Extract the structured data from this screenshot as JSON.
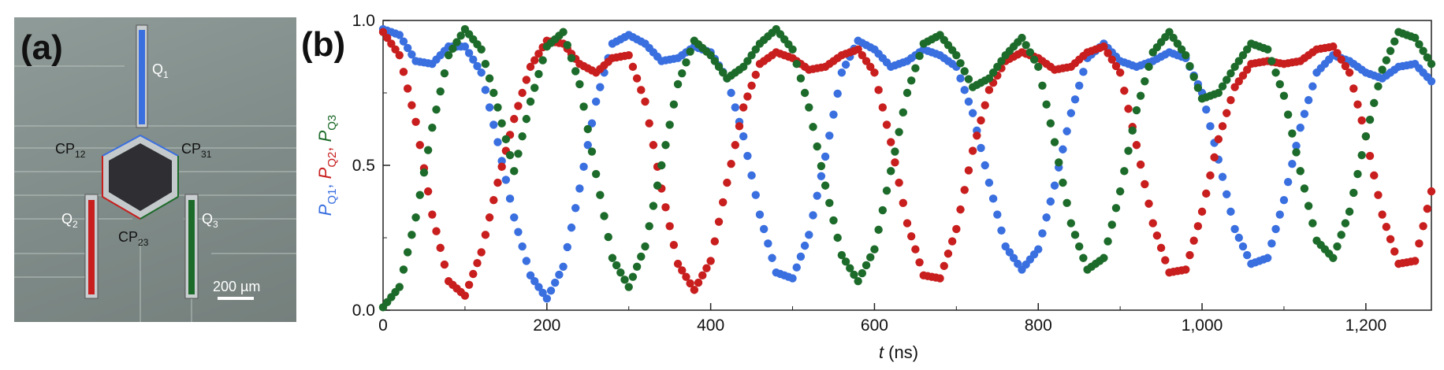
{
  "panel_a": {
    "label": "(a)",
    "labels": {
      "q1": "Q",
      "q1_sub": "1",
      "q2": "Q",
      "q2_sub": "2",
      "q3": "Q",
      "q3_sub": "3",
      "cp12": "CP",
      "cp12_sub": "12",
      "cp31": "CP",
      "cp31_sub": "31",
      "cp23": "CP",
      "cp23_sub": "23"
    },
    "scale_bar": "200 µm",
    "colors": {
      "q1": "#3a6fe0",
      "q2": "#c81e1e",
      "q3": "#1d6b2a",
      "body": "#2f2f33"
    }
  },
  "panel_b": {
    "label": "(b)",
    "xlabel_italic": "t",
    "xlabel_unit": " (ns)",
    "ylabel_parts": [
      {
        "p": "P",
        "sub": "Q1",
        "sep": ", ",
        "color": "#3a6fe0"
      },
      {
        "p": "P",
        "sub": "Q2",
        "sep": ", ",
        "color": "#c81e1e"
      },
      {
        "p": "P",
        "sub": "Q3",
        "sep": "",
        "color": "#1d6b2a"
      }
    ]
  },
  "chart_data": {
    "type": "scatter",
    "xlim": [
      0,
      1280
    ],
    "ylim": [
      0,
      1
    ],
    "x_ticks": [
      0,
      200,
      400,
      600,
      800,
      1000,
      1200
    ],
    "x_tick_labels": [
      "0",
      "200",
      "400",
      "600",
      "800",
      "1,000",
      "1,200"
    ],
    "y_ticks": [
      0,
      0.5,
      1
    ],
    "y_tick_labels": [
      "0.0",
      "0.5",
      "1.0"
    ],
    "grid": false,
    "series": [
      {
        "name": "PQ1",
        "color": "#3a6fe0",
        "points": [
          [
            0,
            0.97
          ],
          [
            20,
            0.95
          ],
          [
            40,
            0.86
          ],
          [
            60,
            0.85
          ],
          [
            80,
            0.91
          ],
          [
            100,
            0.91
          ],
          [
            120,
            0.82
          ],
          [
            140,
            0.58
          ],
          [
            160,
            0.32
          ],
          [
            180,
            0.12
          ],
          [
            200,
            0.04
          ],
          [
            220,
            0.15
          ],
          [
            240,
            0.42
          ],
          [
            260,
            0.72
          ],
          [
            280,
            0.92
          ],
          [
            300,
            0.95
          ],
          [
            320,
            0.92
          ],
          [
            340,
            0.86
          ],
          [
            360,
            0.87
          ],
          [
            380,
            0.91
          ],
          [
            400,
            0.89
          ],
          [
            420,
            0.8
          ],
          [
            440,
            0.6
          ],
          [
            460,
            0.33
          ],
          [
            480,
            0.13
          ],
          [
            500,
            0.11
          ],
          [
            520,
            0.26
          ],
          [
            540,
            0.53
          ],
          [
            560,
            0.82
          ],
          [
            580,
            0.93
          ],
          [
            600,
            0.9
          ],
          [
            620,
            0.84
          ],
          [
            640,
            0.86
          ],
          [
            660,
            0.9
          ],
          [
            680,
            0.88
          ],
          [
            700,
            0.84
          ],
          [
            720,
            0.68
          ],
          [
            740,
            0.44
          ],
          [
            760,
            0.22
          ],
          [
            780,
            0.14
          ],
          [
            800,
            0.21
          ],
          [
            820,
            0.43
          ],
          [
            840,
            0.68
          ],
          [
            860,
            0.87
          ],
          [
            880,
            0.92
          ],
          [
            900,
            0.86
          ],
          [
            920,
            0.84
          ],
          [
            940,
            0.86
          ],
          [
            960,
            0.89
          ],
          [
            980,
            0.87
          ],
          [
            1000,
            0.75
          ],
          [
            1020,
            0.52
          ],
          [
            1040,
            0.28
          ],
          [
            1060,
            0.16
          ],
          [
            1080,
            0.18
          ],
          [
            1100,
            0.38
          ],
          [
            1120,
            0.63
          ],
          [
            1140,
            0.82
          ],
          [
            1160,
            0.88
          ],
          [
            1180,
            0.86
          ],
          [
            1200,
            0.82
          ],
          [
            1220,
            0.8
          ],
          [
            1240,
            0.84
          ],
          [
            1260,
            0.85
          ],
          [
            1280,
            0.79
          ]
        ]
      },
      {
        "name": "PQ2",
        "color": "#c81e1e",
        "points": [
          [
            0,
            0.96
          ],
          [
            20,
            0.88
          ],
          [
            40,
            0.65
          ],
          [
            60,
            0.33
          ],
          [
            80,
            0.1
          ],
          [
            100,
            0.05
          ],
          [
            120,
            0.2
          ],
          [
            140,
            0.44
          ],
          [
            160,
            0.66
          ],
          [
            180,
            0.84
          ],
          [
            200,
            0.93
          ],
          [
            220,
            0.92
          ],
          [
            240,
            0.85
          ],
          [
            260,
            0.82
          ],
          [
            280,
            0.87
          ],
          [
            300,
            0.88
          ],
          [
            320,
            0.72
          ],
          [
            340,
            0.42
          ],
          [
            360,
            0.16
          ],
          [
            380,
            0.07
          ],
          [
            400,
            0.17
          ],
          [
            420,
            0.44
          ],
          [
            440,
            0.7
          ],
          [
            460,
            0.85
          ],
          [
            480,
            0.89
          ],
          [
            500,
            0.87
          ],
          [
            520,
            0.83
          ],
          [
            540,
            0.84
          ],
          [
            560,
            0.88
          ],
          [
            580,
            0.9
          ],
          [
            600,
            0.82
          ],
          [
            620,
            0.58
          ],
          [
            640,
            0.3
          ],
          [
            660,
            0.12
          ],
          [
            680,
            0.11
          ],
          [
            700,
            0.28
          ],
          [
            720,
            0.55
          ],
          [
            740,
            0.76
          ],
          [
            760,
            0.86
          ],
          [
            780,
            0.89
          ],
          [
            800,
            0.87
          ],
          [
            820,
            0.83
          ],
          [
            840,
            0.84
          ],
          [
            860,
            0.89
          ],
          [
            880,
            0.91
          ],
          [
            900,
            0.82
          ],
          [
            920,
            0.57
          ],
          [
            940,
            0.3
          ],
          [
            960,
            0.13
          ],
          [
            980,
            0.14
          ],
          [
            1000,
            0.34
          ],
          [
            1020,
            0.59
          ],
          [
            1040,
            0.77
          ],
          [
            1060,
            0.85
          ],
          [
            1080,
            0.86
          ],
          [
            1100,
            0.85
          ],
          [
            1120,
            0.86
          ],
          [
            1140,
            0.9
          ],
          [
            1160,
            0.91
          ],
          [
            1180,
            0.82
          ],
          [
            1200,
            0.6
          ],
          [
            1220,
            0.33
          ],
          [
            1240,
            0.16
          ],
          [
            1260,
            0.17
          ],
          [
            1280,
            0.41
          ]
        ]
      },
      {
        "name": "PQ3",
        "color": "#1d6b2a",
        "points": [
          [
            0,
            0.01
          ],
          [
            20,
            0.08
          ],
          [
            40,
            0.32
          ],
          [
            60,
            0.63
          ],
          [
            80,
            0.88
          ],
          [
            100,
            0.97
          ],
          [
            120,
            0.9
          ],
          [
            140,
            0.7
          ],
          [
            160,
            0.48
          ],
          [
            180,
            0.72
          ],
          [
            200,
            0.91
          ],
          [
            220,
            0.96
          ],
          [
            240,
            0.78
          ],
          [
            260,
            0.47
          ],
          [
            280,
            0.18
          ],
          [
            300,
            0.08
          ],
          [
            320,
            0.22
          ],
          [
            340,
            0.5
          ],
          [
            360,
            0.78
          ],
          [
            380,
            0.93
          ],
          [
            400,
            0.88
          ],
          [
            420,
            0.8
          ],
          [
            440,
            0.84
          ],
          [
            460,
            0.92
          ],
          [
            480,
            0.97
          ],
          [
            500,
            0.9
          ],
          [
            520,
            0.7
          ],
          [
            540,
            0.43
          ],
          [
            560,
            0.19
          ],
          [
            580,
            0.1
          ],
          [
            600,
            0.21
          ],
          [
            620,
            0.48
          ],
          [
            640,
            0.75
          ],
          [
            660,
            0.92
          ],
          [
            680,
            0.95
          ],
          [
            700,
            0.88
          ],
          [
            720,
            0.77
          ],
          [
            740,
            0.8
          ],
          [
            760,
            0.88
          ],
          [
            780,
            0.94
          ],
          [
            800,
            0.84
          ],
          [
            820,
            0.58
          ],
          [
            840,
            0.3
          ],
          [
            860,
            0.14
          ],
          [
            880,
            0.18
          ],
          [
            900,
            0.41
          ],
          [
            920,
            0.69
          ],
          [
            940,
            0.89
          ],
          [
            960,
            0.96
          ],
          [
            980,
            0.88
          ],
          [
            1000,
            0.73
          ],
          [
            1020,
            0.75
          ],
          [
            1040,
            0.84
          ],
          [
            1060,
            0.92
          ],
          [
            1080,
            0.9
          ],
          [
            1100,
            0.74
          ],
          [
            1120,
            0.48
          ],
          [
            1140,
            0.24
          ],
          [
            1160,
            0.18
          ],
          [
            1180,
            0.34
          ],
          [
            1200,
            0.6
          ],
          [
            1220,
            0.83
          ],
          [
            1240,
            0.96
          ],
          [
            1260,
            0.94
          ],
          [
            1280,
            0.85
          ]
        ]
      }
    ]
  }
}
